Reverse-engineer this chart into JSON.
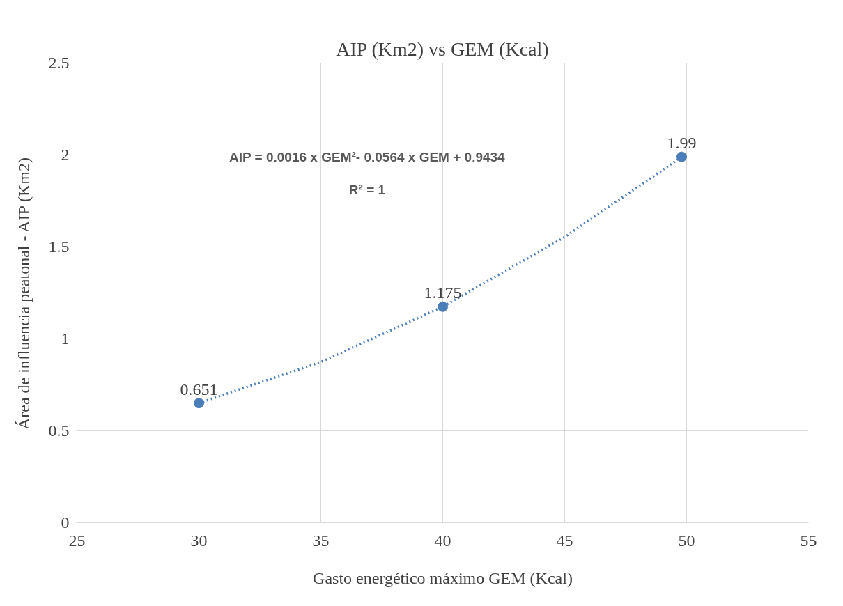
{
  "chart_data": {
    "type": "scatter",
    "title": "AIP (Km2) vs GEM (Kcal)",
    "xlabel": "Gasto energético máximo GEM (Kcal)",
    "ylabel": "Área de influencia peatonal - AIP (Km2)",
    "annotations": [
      "AIP = 0.0016 x GEM²- 0.0564 x GEM + 0.9434",
      "R² = 1"
    ],
    "series": [
      {
        "type": "line",
        "color": "#4a7ebb",
        "x": [
          30,
          35,
          40,
          45,
          49.8
        ],
        "values": [
          0.651,
          0.874,
          1.175,
          1.554,
          1.99
        ],
        "line_style": "dotted",
        "marker": "none"
      },
      {
        "color": "#4a7ebb",
        "x": [
          30,
          40,
          49.8
        ],
        "values": [
          0.651,
          1.175,
          1.99
        ],
        "value_labels": [
          "0.651",
          "1.175",
          "1.99"
        ],
        "marker": "circle"
      }
    ],
    "xlim": [
      25,
      55
    ],
    "xticks": [
      25,
      30,
      35,
      40,
      45,
      50,
      55
    ],
    "ylim": [
      0,
      2.5
    ],
    "yticks": [
      0,
      0.5,
      1,
      1.5,
      2,
      2.5
    ],
    "grid": true
  }
}
